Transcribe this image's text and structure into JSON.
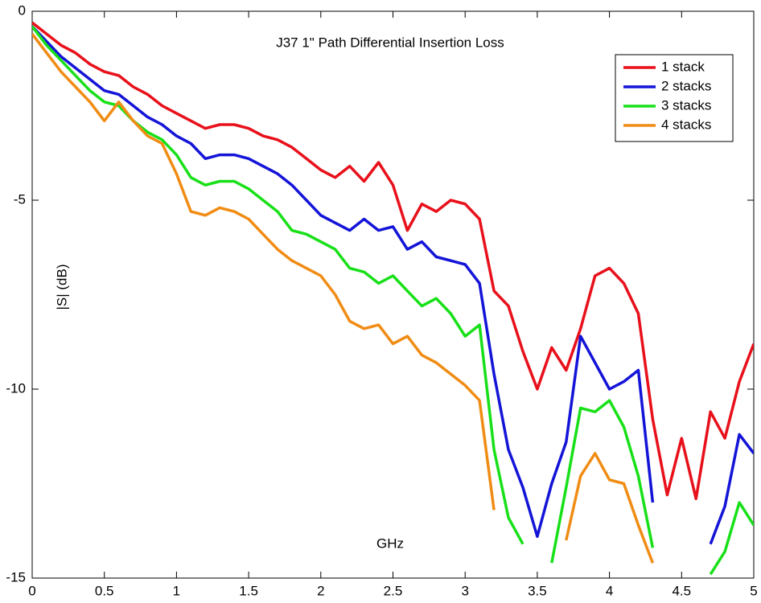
{
  "chart_data": {
    "type": "line",
    "title": "J37 1\" Path Differential Insertion Loss",
    "xlabel": "GHz",
    "ylabel": "|S| (dB)",
    "x": [
      0,
      0.1,
      0.2,
      0.3,
      0.4,
      0.5,
      0.6,
      0.7,
      0.8,
      0.9,
      1,
      1.1,
      1.2,
      1.3,
      1.4,
      1.5,
      1.6,
      1.7,
      1.8,
      1.9,
      2,
      2.1,
      2.2,
      2.3,
      2.4,
      2.5,
      2.6,
      2.7,
      2.8,
      2.9,
      3,
      3.1,
      3.2,
      3.3,
      3.4,
      3.5,
      3.6,
      3.7,
      3.8,
      3.9,
      4,
      4.1,
      4.2,
      4.3,
      4.4,
      4.5,
      4.6,
      4.7,
      4.8,
      4.9,
      5
    ],
    "series": [
      {
        "name": "1 stack",
        "color": "#e8101a",
        "values": [
          -0.3,
          -0.6,
          -0.9,
          -1.1,
          -1.4,
          -1.6,
          -1.7,
          -2.0,
          -2.2,
          -2.5,
          -2.7,
          -2.9,
          -3.1,
          -3.0,
          -3.0,
          -3.1,
          -3.3,
          -3.4,
          -3.6,
          -3.9,
          -4.2,
          -4.4,
          -4.1,
          -4.5,
          -4.0,
          -4.6,
          -5.8,
          -5.1,
          -5.3,
          -5.0,
          -5.1,
          -5.5,
          -7.4,
          -7.8,
          -9.0,
          -10.0,
          -8.9,
          -9.5,
          -8.4,
          -7.0,
          -6.8,
          -7.2,
          -8.0,
          -10.8,
          -12.8,
          -11.3,
          -12.9,
          -10.6,
          -11.3,
          -9.8,
          -8.8
        ]
      },
      {
        "name": "2 stacks",
        "color": "#1414d8",
        "values": [
          -0.4,
          -0.8,
          -1.2,
          -1.5,
          -1.8,
          -2.1,
          -2.2,
          -2.5,
          -2.8,
          -3.0,
          -3.3,
          -3.5,
          -3.9,
          -3.8,
          -3.8,
          -3.9,
          -4.1,
          -4.3,
          -4.6,
          -5.0,
          -5.4,
          -5.6,
          -5.8,
          -5.5,
          -5.8,
          -5.7,
          -6.3,
          -6.1,
          -6.5,
          -6.6,
          -6.7,
          -7.2,
          -9.6,
          -11.6,
          -12.6,
          -13.9,
          -12.5,
          -11.4,
          -8.6,
          -9.3,
          -10.0,
          -9.8,
          -9.5,
          -13.0,
          null,
          null,
          null,
          -14.1,
          -13.1,
          -11.2,
          -11.7
        ]
      },
      {
        "name": "3 stacks",
        "color": "#18e018",
        "values": [
          -0.4,
          -0.9,
          -1.3,
          -1.7,
          -2.1,
          -2.4,
          -2.5,
          -2.9,
          -3.2,
          -3.4,
          -3.8,
          -4.4,
          -4.6,
          -4.5,
          -4.5,
          -4.7,
          -5.0,
          -5.3,
          -5.8,
          -5.9,
          -6.1,
          -6.3,
          -6.8,
          -6.9,
          -7.2,
          -7.0,
          -7.4,
          -7.8,
          -7.6,
          -8.0,
          -8.6,
          -8.3,
          -11.6,
          -13.4,
          -14.1,
          null,
          -14.6,
          -12.6,
          -10.5,
          -10.6,
          -10.3,
          -11.0,
          -12.3,
          -14.2,
          null,
          null,
          null,
          -14.9,
          -14.3,
          -13.0,
          -13.6
        ]
      },
      {
        "name": "4 stacks",
        "color": "#f08c14",
        "values": [
          -0.6,
          -1.1,
          -1.6,
          -2.0,
          -2.4,
          -2.9,
          -2.4,
          -2.9,
          -3.3,
          -3.5,
          -4.3,
          -5.3,
          -5.4,
          -5.2,
          -5.3,
          -5.5,
          -5.9,
          -6.3,
          -6.6,
          -6.8,
          -7.0,
          -7.5,
          -8.2,
          -8.4,
          -8.3,
          -8.8,
          -8.6,
          -9.1,
          -9.3,
          -9.6,
          -9.9,
          -10.3,
          -13.2,
          null,
          null,
          null,
          null,
          -14.0,
          -12.3,
          -11.7,
          -12.4,
          -12.5,
          -13.6,
          -14.6,
          null,
          null,
          null,
          null,
          null,
          null,
          null
        ]
      }
    ],
    "xlim": [
      0,
      5
    ],
    "xticks": [
      0,
      0.5,
      1,
      1.5,
      2,
      2.5,
      3,
      3.5,
      4,
      4.5,
      5
    ],
    "ylim": [
      -15,
      0
    ],
    "yticks": [
      -15,
      -10,
      -5,
      0
    ],
    "grid": false,
    "legend": "upper right"
  }
}
